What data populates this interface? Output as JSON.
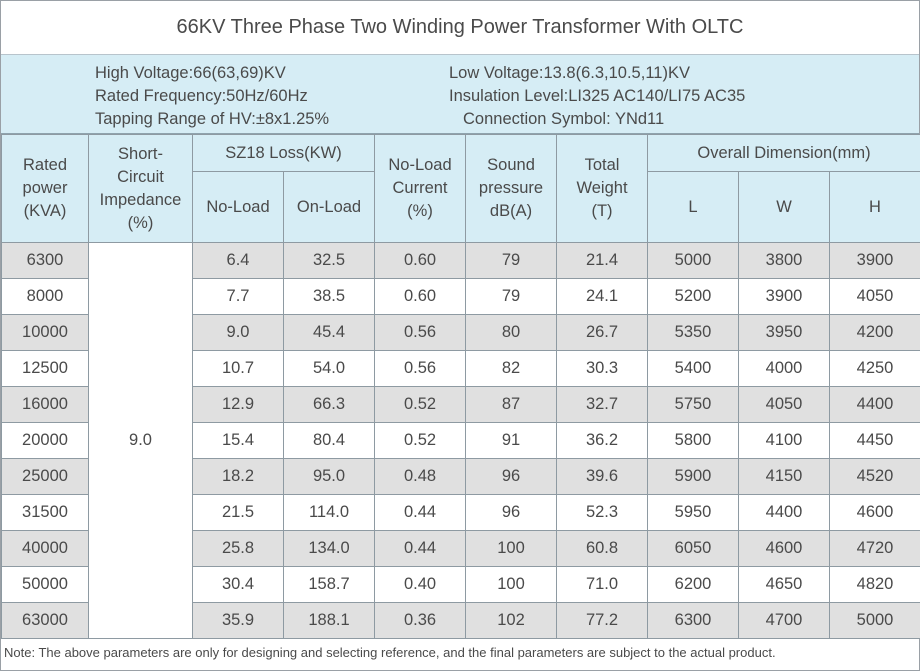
{
  "title": "66KV Three Phase Two Winding Power Transformer With OLTC",
  "specs": {
    "high_voltage": "High Voltage:66(63,69)KV",
    "rated_frequency": "Rated Frequency:50Hz/60Hz",
    "tapping_range": "Tapping Range of HV:±8x1.25%",
    "low_voltage": "Low Voltage:13.8(6.3,10.5,11)KV",
    "insulation_level": "Insulation Level:LI325 AC140/LI75 AC35",
    "connection_symbol": "Connection Symbol: YNd11"
  },
  "headers": {
    "rated_power": [
      "Rated",
      "power",
      "(KVA)"
    ],
    "impedance": [
      "Short-",
      "Circuit",
      "Impedance",
      "(%)"
    ],
    "loss_group": "SZ18 Loss(KW)",
    "no_load": "No-Load",
    "on_load": "On-Load",
    "no_load_current": [
      "No-Load",
      "Current",
      "(%)"
    ],
    "sound": [
      "Sound",
      "pressure",
      "dB(A)"
    ],
    "weight": [
      "Total",
      "Weight",
      "(T)"
    ],
    "dimension_group": "Overall Dimension(mm)",
    "dim_l": "L",
    "dim_w": "W",
    "dim_h": "H"
  },
  "impedance_value": "9.0",
  "rows": [
    [
      "6300",
      "6.4",
      "32.5",
      "0.60",
      "79",
      "21.4",
      "5000",
      "3800",
      "3900"
    ],
    [
      "8000",
      "7.7",
      "38.5",
      "0.60",
      "79",
      "24.1",
      "5200",
      "3900",
      "4050"
    ],
    [
      "10000",
      "9.0",
      "45.4",
      "0.56",
      "80",
      "26.7",
      "5350",
      "3950",
      "4200"
    ],
    [
      "12500",
      "10.7",
      "54.0",
      "0.56",
      "82",
      "30.3",
      "5400",
      "4000",
      "4250"
    ],
    [
      "16000",
      "12.9",
      "66.3",
      "0.52",
      "87",
      "32.7",
      "5750",
      "4050",
      "4400"
    ],
    [
      "20000",
      "15.4",
      "80.4",
      "0.52",
      "91",
      "36.2",
      "5800",
      "4100",
      "4450"
    ],
    [
      "25000",
      "18.2",
      "95.0",
      "0.48",
      "96",
      "39.6",
      "5900",
      "4150",
      "4520"
    ],
    [
      "31500",
      "21.5",
      "114.0",
      "0.44",
      "96",
      "52.3",
      "5950",
      "4400",
      "4600"
    ],
    [
      "40000",
      "25.8",
      "134.0",
      "0.44",
      "100",
      "60.8",
      "6050",
      "4600",
      "4720"
    ],
    [
      "50000",
      "30.4",
      "158.7",
      "0.40",
      "100",
      "71.0",
      "6200",
      "4650",
      "4820"
    ],
    [
      "63000",
      "35.9",
      "188.1",
      "0.36",
      "102",
      "77.2",
      "6300",
      "4700",
      "5000"
    ]
  ],
  "note": "Note: The above parameters are only for designing and selecting  reference, and the final parameters are subject to the actual product."
}
